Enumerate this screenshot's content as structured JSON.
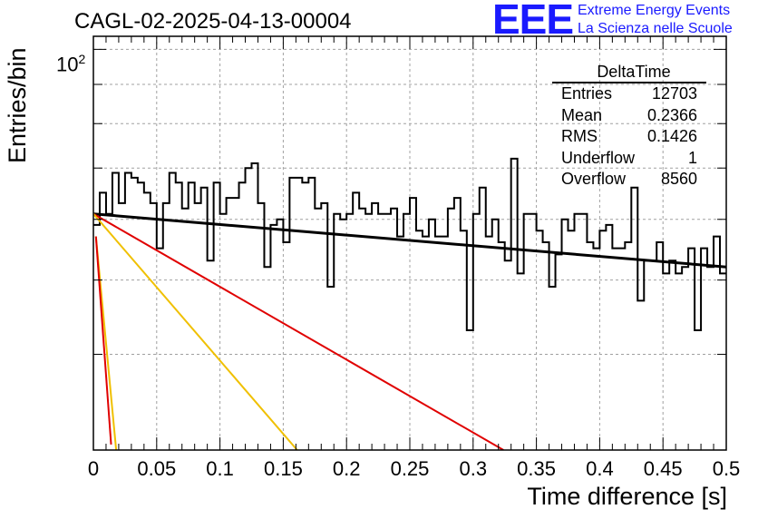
{
  "title": "CAGL-02-2025-04-13-00004",
  "logo": {
    "mark": "EEE",
    "line1": "Extreme Energy Events",
    "line2": "La Scienza nelle Scuole"
  },
  "stats": {
    "name": "DeltaTime",
    "rows": [
      {
        "label": "Entries",
        "value": "12703"
      },
      {
        "label": "Mean",
        "value": "0.2366"
      },
      {
        "label": "RMS",
        "value": "0.1426"
      },
      {
        "label": "Underflow",
        "value": "1"
      },
      {
        "label": "Overflow",
        "value": "8560"
      }
    ]
  },
  "chart_data": {
    "type": "histogram",
    "xlabel": "Time difference [s]",
    "ylabel": "Entries/bin",
    "xlim": [
      0,
      0.5
    ],
    "ylim": [
      30,
      104
    ],
    "y_scale": "log",
    "y_tick_label_base": "10",
    "y_tick_label_exp": "2",
    "x_ticks": [
      "0",
      "0.05",
      "0.1",
      "0.15",
      "0.2",
      "0.25",
      "0.3",
      "0.35",
      "0.4",
      "0.45",
      "0.5"
    ],
    "grid": true,
    "bin_width": 0.005,
    "bin_counts": [
      59,
      65,
      61,
      69,
      63,
      69,
      68,
      67,
      65,
      63,
      55,
      63,
      69,
      67,
      62,
      67,
      63,
      66,
      53,
      67,
      61,
      64,
      64,
      67,
      70,
      71,
      63,
      52,
      59,
      60,
      56,
      68,
      68,
      67,
      68,
      62,
      63,
      49,
      61,
      60,
      61,
      65,
      62,
      61,
      63,
      61,
      61,
      62,
      57,
      61,
      64,
      58,
      57,
      60,
      57,
      57,
      62,
      64,
      58,
      43,
      61,
      66,
      57,
      60,
      56,
      53,
      72,
      51,
      61,
      61,
      58,
      56,
      49,
      54,
      60,
      58,
      61,
      61,
      56,
      55,
      58,
      59,
      55,
      55,
      56,
      66,
      47,
      53,
      53,
      56,
      51,
      53,
      51,
      52,
      55,
      43,
      55,
      52,
      57,
      51
    ],
    "fits": [
      {
        "name": "fit",
        "color": "#000000",
        "x": [
          0,
          0.5
        ],
        "y": [
          61,
          52
        ]
      },
      {
        "name": "fast-red-1",
        "color": "#e00000",
        "x": [
          0,
          0.324
        ],
        "y": [
          61,
          30
        ]
      },
      {
        "name": "fast-yellow-1",
        "color": "#f0c000",
        "x": [
          0,
          0.161
        ],
        "y": [
          61,
          30
        ]
      },
      {
        "name": "fast-yellow-2",
        "color": "#f0c000",
        "x": [
          0.002,
          0.018
        ],
        "y": [
          57,
          30
        ]
      },
      {
        "name": "fast-red-2",
        "color": "#e00000",
        "x": [
          0.002,
          0.014
        ],
        "y": [
          57,
          30.5
        ]
      }
    ],
    "colors": {
      "histogram": "#000000",
      "grid": "#a0a0a0"
    }
  }
}
